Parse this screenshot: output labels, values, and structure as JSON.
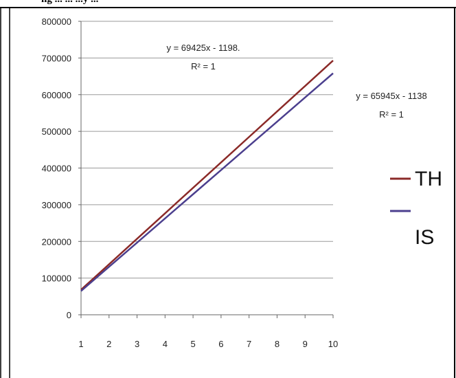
{
  "caption": "ng ... ... ...y ...",
  "chart_data": {
    "type": "line",
    "x": [
      1,
      2,
      3,
      4,
      5,
      6,
      7,
      8,
      9,
      10
    ],
    "x_tick_labels": [
      "1",
      "2",
      "3",
      "4",
      "5",
      "6",
      "7",
      "8",
      "9",
      "10"
    ],
    "y_tick_labels": [
      "0",
      "100000",
      "200000",
      "300000",
      "400000",
      "500000",
      "600000",
      "700000",
      "800000"
    ],
    "ylim": [
      0,
      800000
    ],
    "xlim": [
      1,
      10
    ],
    "grid": "horizontal",
    "legend_position": "right",
    "series": [
      {
        "name": "TH",
        "color": "#8B2A28",
        "values": [
          68227,
          137652,
          207077,
          276502,
          345927,
          415352,
          484777,
          554202,
          623627,
          693052
        ]
      },
      {
        "name": "IS",
        "color": "#4B3F8E",
        "values": [
          64807,
          130752,
          196697,
          262642,
          328587,
          394532,
          460477,
          526422,
          592367,
          658312
        ]
      }
    ],
    "annotations": [
      {
        "series": "TH",
        "equation": "y = 69425x - 1198.",
        "r2": "R² = 1"
      },
      {
        "series": "IS",
        "equation": "y = 65945x - 1138",
        "r2": "R² = 1"
      }
    ]
  }
}
